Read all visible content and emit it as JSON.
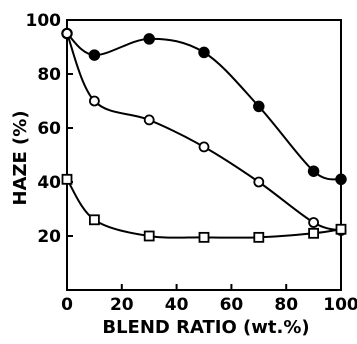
{
  "chart_data": {
    "type": "line",
    "xlabel": "BLEND RATIO (wt.%)",
    "ylabel": "HAZE (%)",
    "xlim": [
      0,
      100
    ],
    "ylim": [
      0,
      100
    ],
    "x_ticks": [
      0,
      20,
      40,
      60,
      80,
      100
    ],
    "y_ticks": [
      20,
      40,
      60,
      80,
      100
    ],
    "x_tick_labels": [
      "0",
      "20",
      "40",
      "60",
      "80",
      "100"
    ],
    "y_tick_labels": [
      "20",
      "40",
      "60",
      "80",
      "100"
    ],
    "grid": false,
    "series": [
      {
        "marker": "filled-circle",
        "x": [
          0,
          10,
          30,
          50,
          70,
          90,
          100
        ],
        "y": [
          95,
          87,
          93,
          88,
          68,
          44,
          41
        ]
      },
      {
        "marker": "open-circle",
        "x": [
          0,
          10,
          30,
          50,
          70,
          90,
          100
        ],
        "y": [
          95,
          70,
          63,
          53,
          40,
          25,
          22
        ]
      },
      {
        "marker": "open-square",
        "x": [
          0,
          10,
          30,
          50,
          70,
          90,
          100
        ],
        "y": [
          41,
          26,
          20,
          19.5,
          19.5,
          21,
          22.5
        ]
      }
    ]
  }
}
